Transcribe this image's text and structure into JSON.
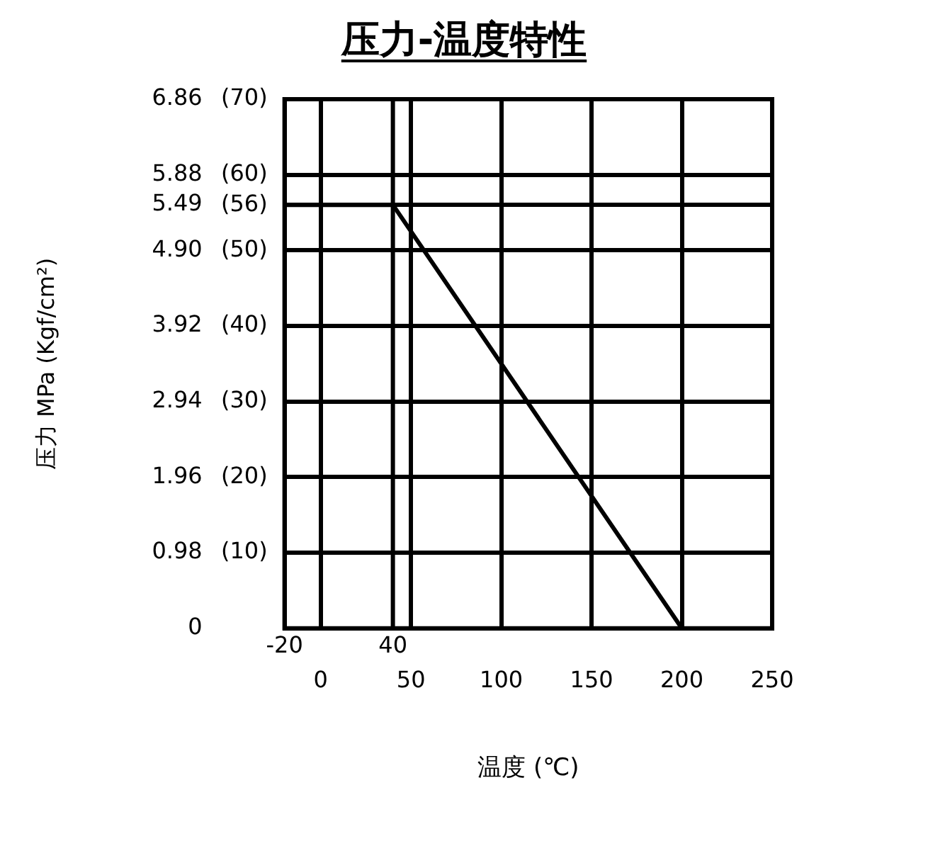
{
  "chart_data": {
    "type": "line",
    "title": "压力-温度特性",
    "xlabel": "温度 (℃)",
    "ylabel": "压力 MPa (Kgf/cm²)",
    "x": [
      -20,
      40,
      200
    ],
    "series": [
      {
        "color": "#000000",
        "values": [
          5.49,
          5.49,
          0
        ]
      }
    ],
    "xlim": [
      -20,
      250
    ],
    "xticks": [
      0,
      50,
      100,
      150,
      200,
      250
    ],
    "ylim": [
      0,
      6.86
    ],
    "yticks": [
      0,
      0.98,
      1.96,
      2.94,
      3.92,
      {
        "value": 4.9,
        "label": "4.90"
      },
      5.49,
      5.88,
      6.86
    ],
    "y2lim": [
      0,
      70
    ],
    "y2ticks": [
      {
        "value": 10,
        "label": "(10)"
      },
      {
        "value": 20,
        "label": "(20)"
      },
      {
        "value": 30,
        "label": "(30)"
      },
      {
        "value": 40,
        "label": "(40)"
      },
      {
        "value": 50,
        "label": "(50)"
      },
      {
        "value": 56,
        "label": "(56)"
      },
      {
        "value": 60,
        "label": "(60)"
      },
      {
        "value": 70,
        "label": "(70)"
      }
    ],
    "ref_lines": [
      {
        "axis": "x",
        "value": 40,
        "label": "40",
        "color": "#000000"
      }
    ],
    "annotations": [
      "-20"
    ],
    "grid": true,
    "legend": false,
    "marker": "none",
    "line_style": "solid"
  }
}
